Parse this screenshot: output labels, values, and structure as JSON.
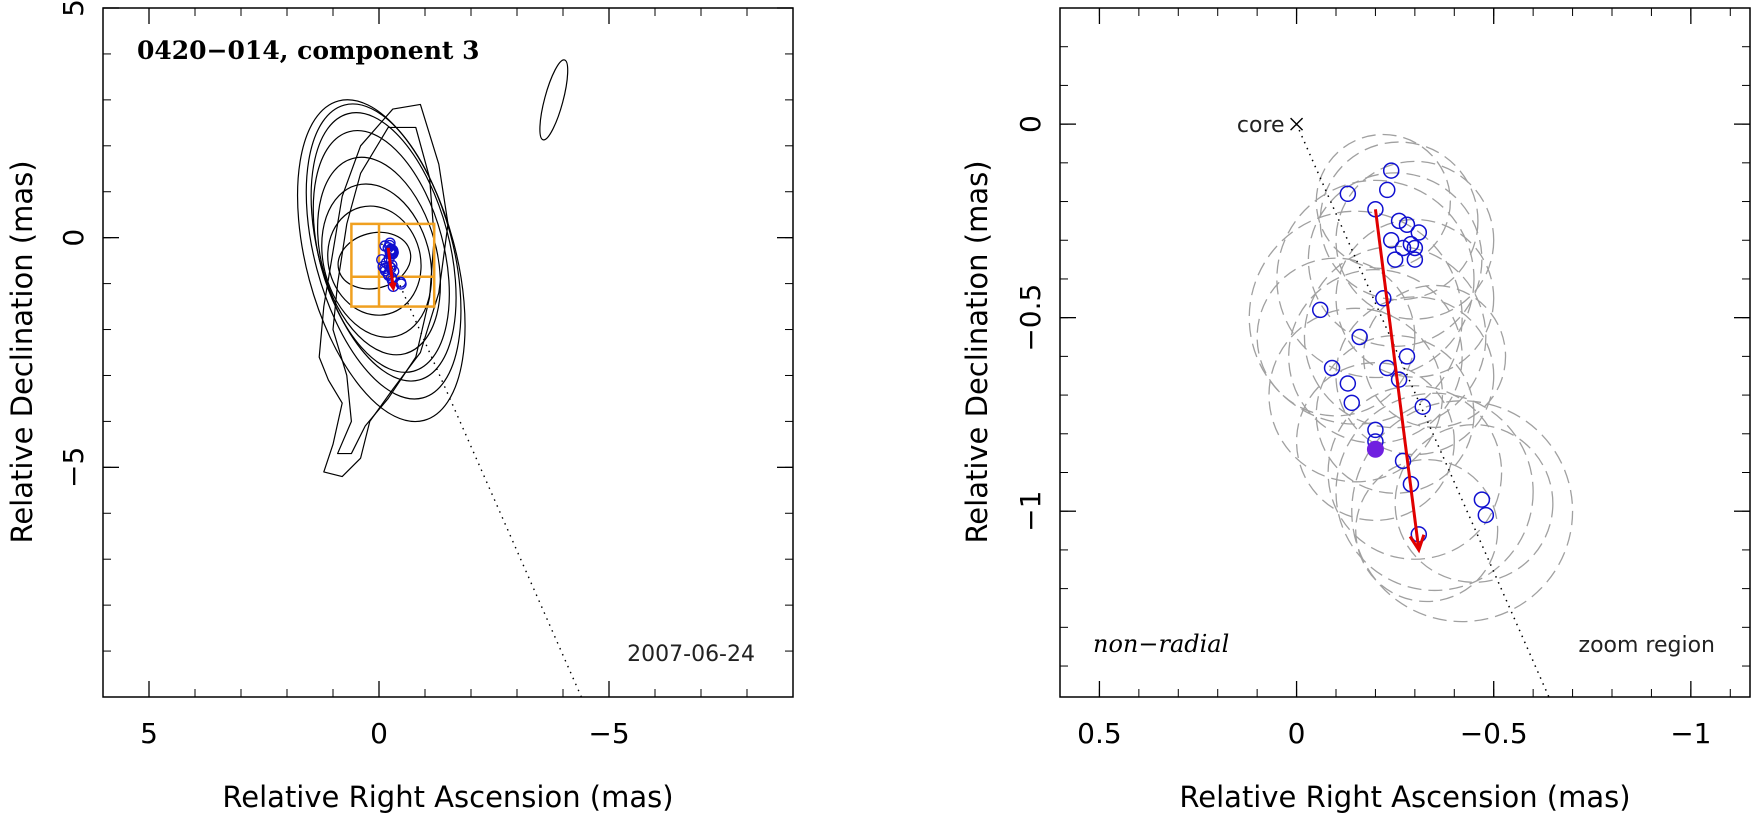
{
  "chart_data": [
    {
      "type": "scatter",
      "panel": "left",
      "title": "0420−014, component 3",
      "date": "2007-06-24",
      "xlabel": "Relative Right Ascension (mas)",
      "ylabel": "Relative Declination (mas)",
      "xlim": [
        6,
        -9
      ],
      "ylim": [
        -10,
        5
      ],
      "xticks": [
        5,
        0,
        -5
      ],
      "xtick_labels": [
        "5",
        "0",
        "−5"
      ],
      "yticks": [
        5,
        0,
        -5
      ],
      "ytick_labels": [
        "5",
        "0",
        "−5"
      ],
      "contours": [
        {
          "cx": 0.1,
          "cy": -0.5,
          "rx": 0.8,
          "ry": 0.6,
          "angle": -15
        },
        {
          "cx": 0.1,
          "cy": -0.5,
          "rx": 1.0,
          "ry": 1.2,
          "angle": -15
        },
        {
          "cx": 0.05,
          "cy": -0.5,
          "rx": 1.15,
          "ry": 1.7,
          "angle": -15
        },
        {
          "cx": 0.0,
          "cy": -0.4,
          "rx": 1.25,
          "ry": 2.2,
          "angle": -15
        },
        {
          "cx": -0.05,
          "cy": -0.3,
          "rx": 1.35,
          "ry": 2.7,
          "angle": -15
        },
        {
          "cx": -0.1,
          "cy": -0.2,
          "rx": 1.42,
          "ry": 3.0,
          "angle": -15
        },
        {
          "cx": -0.1,
          "cy": -0.3,
          "rx": 1.5,
          "ry": 3.3,
          "angle": -15
        },
        {
          "cx": -0.05,
          "cy": -0.5,
          "rx": 1.62,
          "ry": 3.6,
          "angle": -15
        }
      ],
      "outer_contours": [
        {
          "points": [
            [
              1.0,
              -0.3
            ],
            [
              1.2,
              -1.5
            ],
            [
              1.3,
              -2.6
            ],
            [
              1.1,
              -3.1
            ],
            [
              0.8,
              -3.6
            ],
            [
              1.0,
              -4.5
            ],
            [
              1.2,
              -5.1
            ],
            [
              0.8,
              -5.2
            ],
            [
              0.4,
              -4.8
            ],
            [
              0.2,
              -4.0
            ],
            [
              -0.3,
              -3.3
            ],
            [
              -0.9,
              -2.5
            ],
            [
              -1.3,
              -1.2
            ],
            [
              -1.5,
              0.3
            ],
            [
              -1.3,
              1.6
            ],
            [
              -0.9,
              2.9
            ],
            [
              -0.3,
              2.8
            ],
            [
              0.4,
              2.0
            ],
            [
              0.8,
              0.9
            ]
          ]
        },
        {
          "points": [
            [
              0.9,
              -1.0
            ],
            [
              1.0,
              -2.0
            ],
            [
              0.7,
              -3.0
            ],
            [
              0.6,
              -4.0
            ],
            [
              0.9,
              -4.7
            ],
            [
              0.6,
              -4.7
            ],
            [
              0.3,
              -4.1
            ],
            [
              -0.2,
              -3.5
            ],
            [
              -0.8,
              -2.6
            ],
            [
              -1.1,
              -1.3
            ],
            [
              -1.2,
              0.0
            ],
            [
              -1.1,
              1.3
            ],
            [
              -0.8,
              2.4
            ],
            [
              -0.2,
              2.4
            ],
            [
              0.4,
              1.4
            ],
            [
              0.7,
              0.3
            ]
          ]
        }
      ],
      "beam": {
        "cx": -3.8,
        "cy": 3.0,
        "rx": 0.2,
        "ry": 0.9,
        "angle": 15
      },
      "zoom_box": {
        "x": [
          -1.2,
          0.6
        ],
        "y": [
          -1.5,
          0.3
        ],
        "hline": -0.85,
        "vline": 0.0
      },
      "jet_direction_line": {
        "x": [
          0.0,
          -4.4
        ],
        "y": [
          0.0,
          -10.0
        ]
      },
      "circles_x": [
        -0.13,
        -0.2,
        -0.23,
        -0.24,
        -0.26,
        -0.28,
        -0.3,
        -0.31,
        -0.27,
        -0.24,
        -0.25,
        -0.29,
        -0.3,
        -0.22,
        -0.06,
        -0.16,
        -0.28,
        -0.23,
        -0.26,
        -0.09,
        -0.13,
        -0.14,
        -0.32,
        -0.2,
        -0.27,
        -0.21,
        -0.29,
        -0.47,
        -0.48,
        -0.31
      ],
      "circles_y": [
        -0.18,
        -0.22,
        -0.17,
        -0.12,
        -0.25,
        -0.26,
        -0.28,
        -0.32,
        -0.33,
        -0.3,
        -0.35,
        -0.32,
        -0.35,
        -0.45,
        -0.48,
        -0.55,
        -0.6,
        -0.63,
        -0.66,
        -0.63,
        -0.67,
        -0.72,
        -0.73,
        -0.79,
        -0.87,
        -0.82,
        -0.93,
        -0.97,
        -1.01,
        -1.06
      ],
      "arrow": {
        "x": [
          -0.2,
          -0.31
        ],
        "y": [
          -0.22,
          -1.1
        ]
      }
    },
    {
      "type": "scatter",
      "panel": "right",
      "annotation_left": "non−radial",
      "annotation_right": "zoom region",
      "core_label": "core",
      "xlabel": "Relative Right Ascension (mas)",
      "ylabel": "Relative Declination (mas)",
      "xlim": [
        0.6,
        -1.15
      ],
      "ylim": [
        -1.48,
        0.3
      ],
      "xticks": [
        0.5,
        0,
        -0.5,
        -1
      ],
      "xtick_labels": [
        "0.5",
        "0",
        "−0.5",
        "−1"
      ],
      "yticks": [
        0,
        -0.5,
        -1
      ],
      "ytick_labels": [
        "0",
        "−0.5",
        "−1"
      ],
      "core": {
        "x": 0.0,
        "y": 0.0
      },
      "jet_direction_line": {
        "x": [
          0.0,
          -0.64
        ],
        "y": [
          0.0,
          -1.48
        ]
      },
      "circles_x": [
        -0.13,
        -0.2,
        -0.23,
        -0.24,
        -0.26,
        -0.28,
        -0.31,
        -0.3,
        -0.27,
        -0.24,
        -0.25,
        -0.29,
        -0.3,
        -0.22,
        -0.06,
        -0.16,
        -0.28,
        -0.23,
        -0.26,
        -0.09,
        -0.13,
        -0.14,
        -0.32,
        -0.2,
        -0.27,
        -0.29,
        -0.47,
        -0.48,
        -0.31,
        -0.2
      ],
      "circles_y": [
        -0.18,
        -0.22,
        -0.17,
        -0.12,
        -0.25,
        -0.26,
        -0.28,
        -0.32,
        -0.32,
        -0.3,
        -0.35,
        -0.31,
        -0.35,
        -0.45,
        -0.48,
        -0.55,
        -0.6,
        -0.63,
        -0.66,
        -0.63,
        -0.67,
        -0.72,
        -0.73,
        -0.79,
        -0.87,
        -0.93,
        -0.97,
        -1.01,
        -1.06,
        -0.82
      ],
      "filled_point": {
        "x": -0.2,
        "y": -0.84
      },
      "arrow": {
        "x": [
          -0.2,
          -0.31
        ],
        "y": [
          -0.22,
          -1.1
        ]
      },
      "error_circles": [
        {
          "x": -0.26,
          "y": -0.25,
          "r": 0.2
        },
        {
          "x": -0.22,
          "y": -0.2,
          "r": 0.17
        },
        {
          "x": -0.3,
          "y": -0.3,
          "r": 0.2
        },
        {
          "x": -0.25,
          "y": -0.35,
          "r": 0.22
        },
        {
          "x": -0.2,
          "y": -0.4,
          "r": 0.25
        },
        {
          "x": -0.3,
          "y": -0.45,
          "r": 0.2
        },
        {
          "x": -0.15,
          "y": -0.5,
          "r": 0.27
        },
        {
          "x": -0.25,
          "y": -0.55,
          "r": 0.23
        },
        {
          "x": -0.2,
          "y": -0.6,
          "r": 0.22
        },
        {
          "x": -0.3,
          "y": -0.65,
          "r": 0.2
        },
        {
          "x": -0.15,
          "y": -0.7,
          "r": 0.22
        },
        {
          "x": -0.25,
          "y": -0.75,
          "r": 0.2
        },
        {
          "x": -0.2,
          "y": -0.82,
          "r": 0.2
        },
        {
          "x": -0.3,
          "y": -0.9,
          "r": 0.22
        },
        {
          "x": -0.35,
          "y": -0.95,
          "r": 0.25
        },
        {
          "x": -0.45,
          "y": -0.98,
          "r": 0.2
        },
        {
          "x": -0.42,
          "y": -1.0,
          "r": 0.28
        },
        {
          "x": -0.33,
          "y": -1.05,
          "r": 0.18
        },
        {
          "x": -0.1,
          "y": -0.55,
          "r": 0.2
        },
        {
          "x": -0.35,
          "y": -0.6,
          "r": 0.18
        }
      ]
    }
  ],
  "colors": {
    "circle": "#1010d0",
    "filled": "#7020e0",
    "arrow": "#e00000",
    "zoom_box": "#f0a020",
    "error_circle": "#a0a0a0",
    "contour": "#000000"
  }
}
